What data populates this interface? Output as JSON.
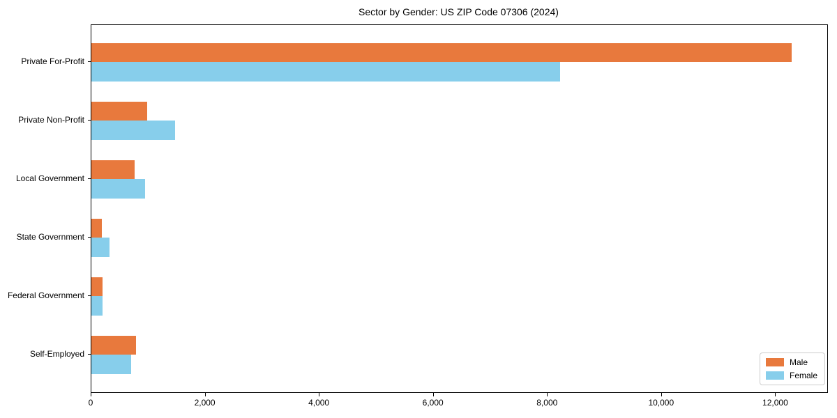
{
  "chart_data": {
    "type": "bar",
    "orientation": "horizontal",
    "title": "Sector by Gender: US ZIP Code 07306 (2024)",
    "categories": [
      "Private For-Profit",
      "Private Non-Profit",
      "Local Government",
      "State Government",
      "Federal Government",
      "Self-Employed"
    ],
    "series": [
      {
        "name": "Male",
        "color": "#E8793D",
        "values": [
          12280,
          980,
          760,
          180,
          200,
          780
        ]
      },
      {
        "name": "Female",
        "color": "#87CEEB",
        "values": [
          8220,
          1465,
          940,
          320,
          195,
          700
        ]
      }
    ],
    "xlabel": "",
    "ylabel": "",
    "xlim": [
      0,
      12900
    ],
    "xticks": [
      0,
      2000,
      4000,
      6000,
      8000,
      10000,
      12000
    ],
    "xtick_labels": [
      "0",
      "2,000",
      "4,000",
      "6,000",
      "8,000",
      "10,000",
      "12,000"
    ],
    "grid": false,
    "legend": {
      "position": "lower right",
      "entries": [
        "Male",
        "Female"
      ]
    }
  }
}
